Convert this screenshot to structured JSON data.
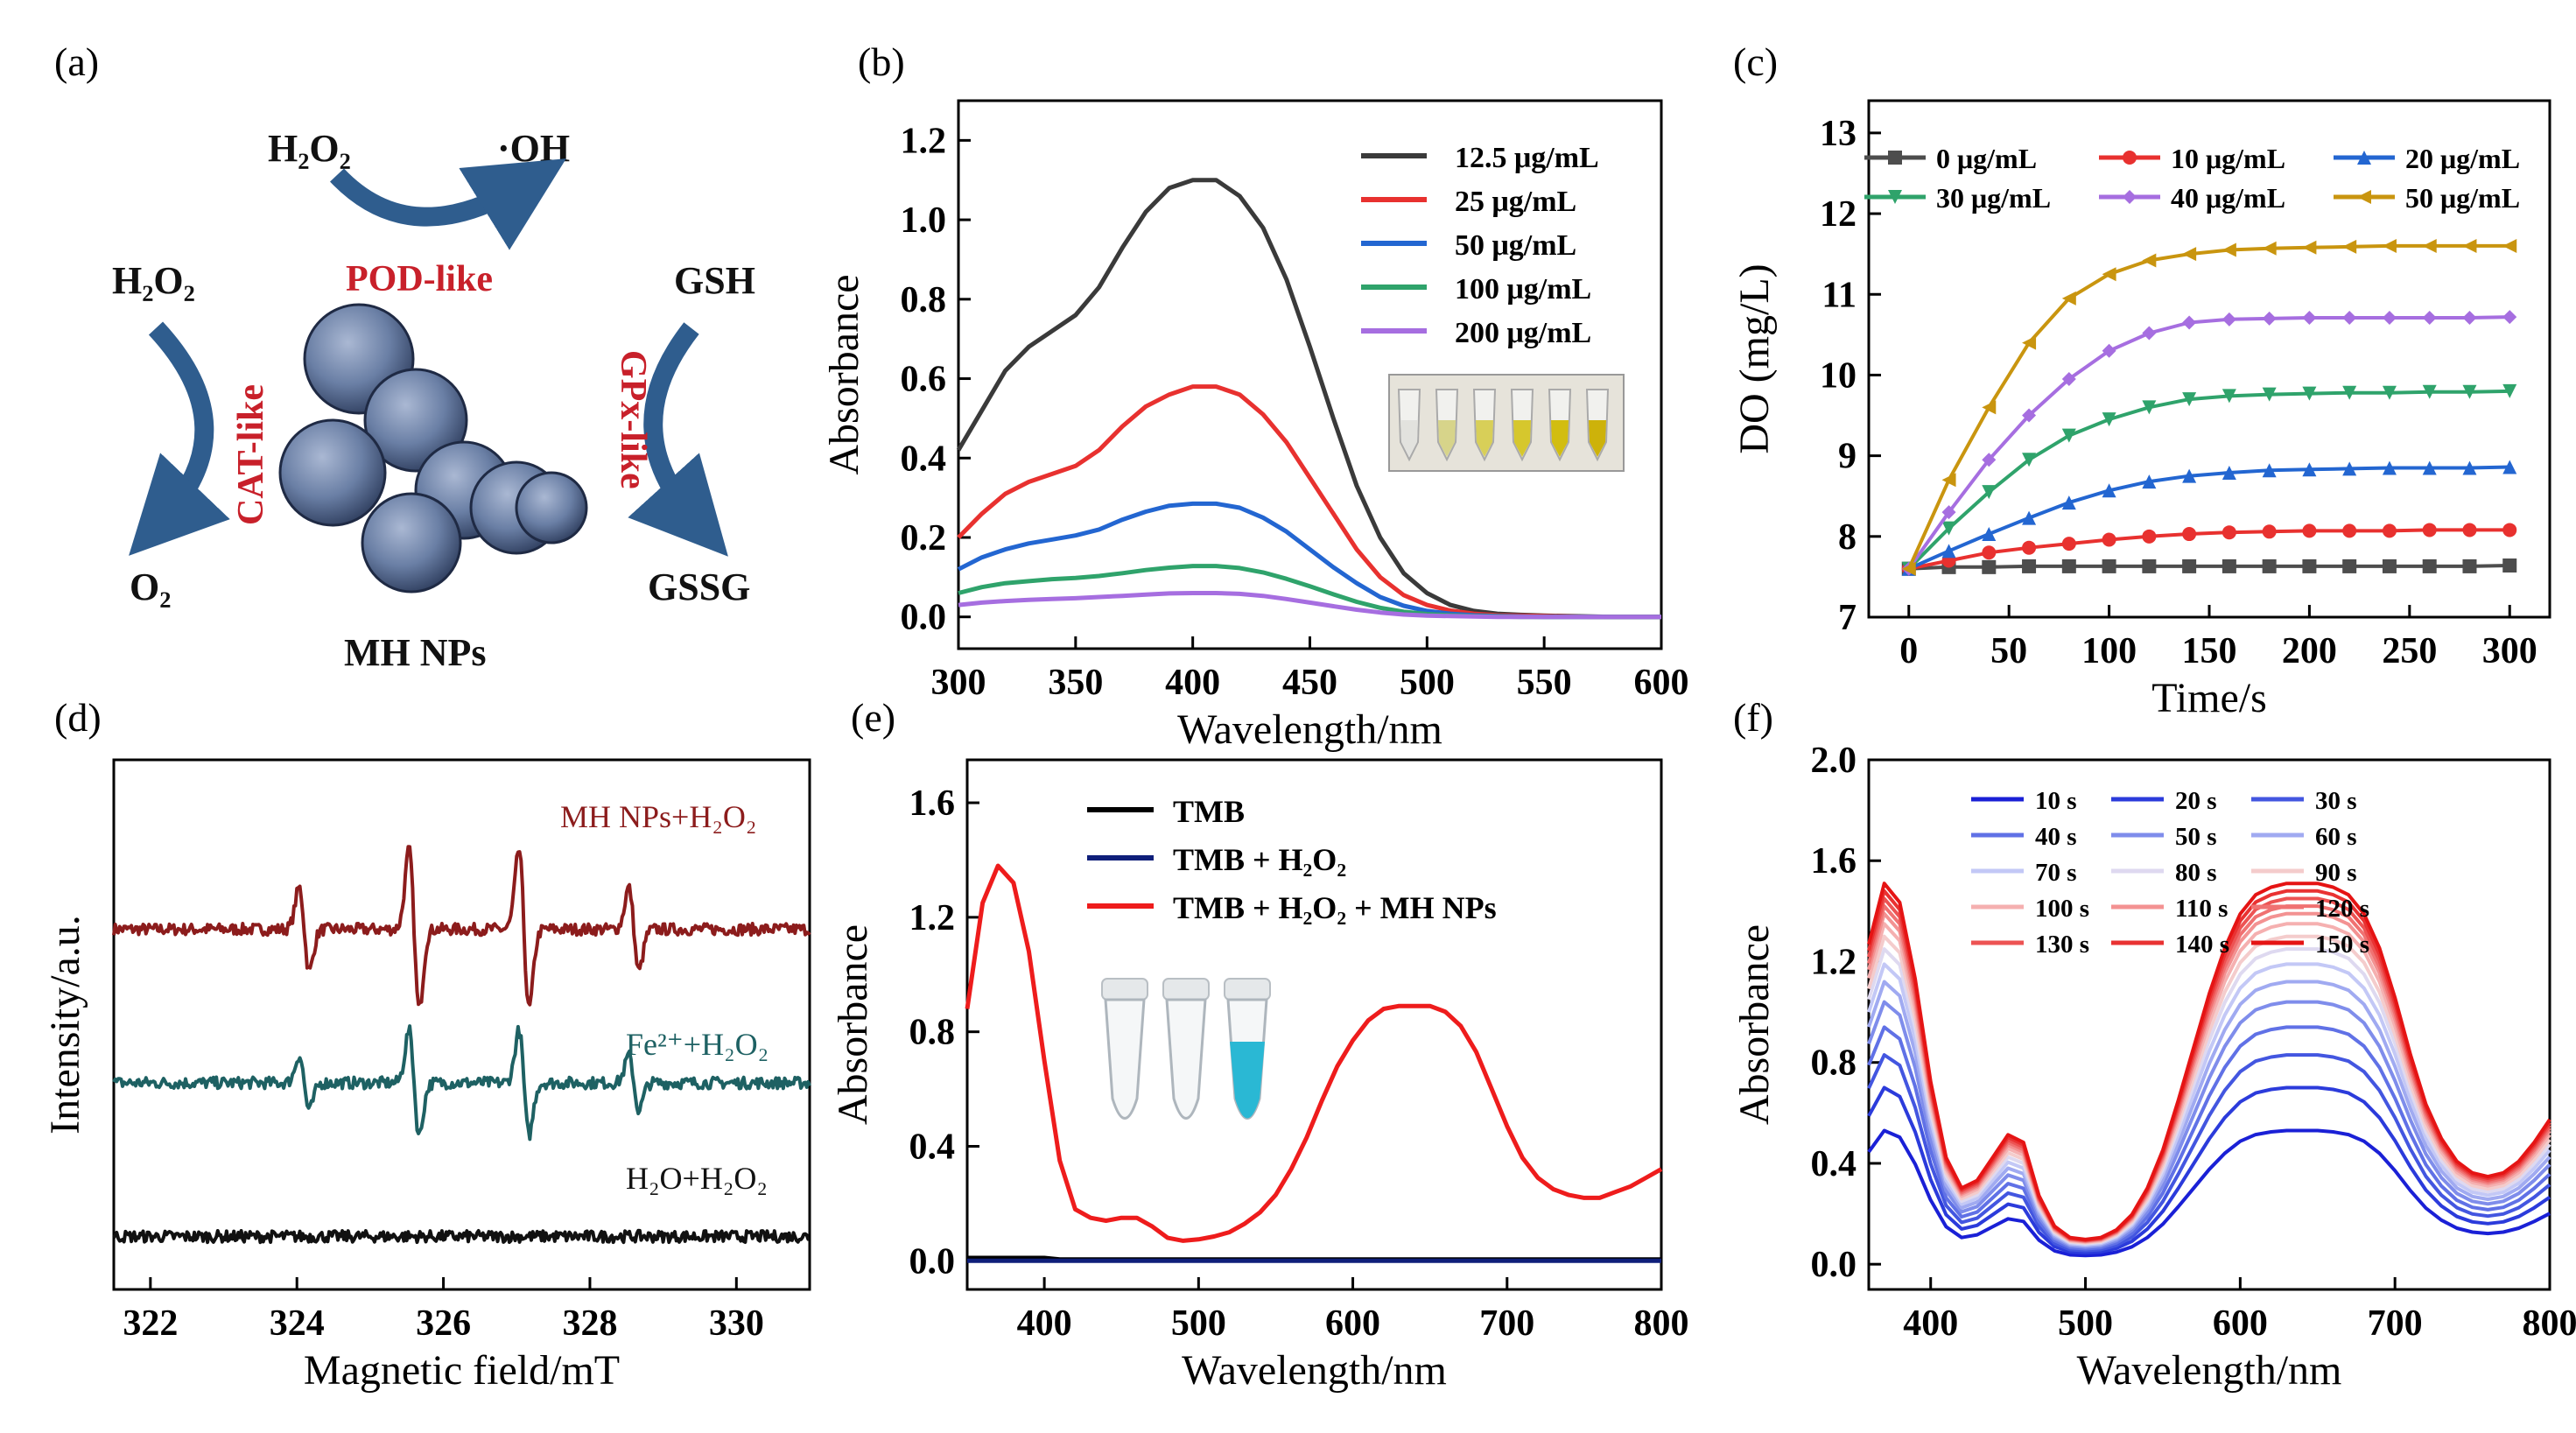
{
  "panel_a": {
    "label": "(a)",
    "top_left": "H₂O₂",
    "top_right": "·OH",
    "pod_label": "POD-like",
    "cat_top": "H₂O₂",
    "cat_bottom": "O₂",
    "cat_label": "CAT-like",
    "gpx_top": "GSH",
    "gpx_bottom": "GSSG",
    "gpx_label": "GPx-like",
    "particle_label": "MH NPs",
    "colors": {
      "arrow": "#2f5d8e",
      "label": "#c8202a",
      "particle": "#6a7fa5"
    }
  },
  "chart_data": [
    {
      "id": "b",
      "panel_label": "(b)",
      "type": "line",
      "xlabel": "Wavelength/nm",
      "ylabel": "Absorbance",
      "xlim": [
        300,
        600
      ],
      "ylim": [
        -0.08,
        1.3
      ],
      "xticks": [
        300,
        350,
        400,
        450,
        500,
        550,
        600
      ],
      "yticks": [
        0.0,
        0.2,
        0.4,
        0.6,
        0.8,
        1.0,
        1.2
      ],
      "ytick_decimals": 1,
      "legend": "top-right",
      "x": [
        300,
        310,
        320,
        330,
        340,
        350,
        360,
        370,
        380,
        390,
        400,
        410,
        420,
        430,
        440,
        450,
        460,
        470,
        480,
        490,
        500,
        510,
        520,
        530,
        540,
        550,
        560,
        570,
        580,
        590,
        600
      ],
      "series": [
        {
          "name": "12.5 μg/mL",
          "color": "#3a3a3a",
          "values": [
            0.42,
            0.52,
            0.62,
            0.68,
            0.72,
            0.76,
            0.83,
            0.93,
            1.02,
            1.08,
            1.1,
            1.1,
            1.06,
            0.98,
            0.85,
            0.68,
            0.5,
            0.33,
            0.2,
            0.11,
            0.06,
            0.03,
            0.015,
            0.008,
            0.005,
            0.003,
            0.002,
            0.001,
            0.0,
            0.0,
            0.0
          ]
        },
        {
          "name": "25 μg/mL",
          "color": "#e8312f",
          "values": [
            0.2,
            0.26,
            0.31,
            0.34,
            0.36,
            0.38,
            0.42,
            0.48,
            0.53,
            0.56,
            0.58,
            0.58,
            0.56,
            0.51,
            0.44,
            0.35,
            0.26,
            0.17,
            0.1,
            0.055,
            0.03,
            0.016,
            0.008,
            0.004,
            0.003,
            0.002,
            0.001,
            0.0,
            0.0,
            0.0,
            0.0
          ]
        },
        {
          "name": "50 μg/mL",
          "color": "#2366d1",
          "values": [
            0.12,
            0.15,
            0.17,
            0.185,
            0.195,
            0.205,
            0.22,
            0.245,
            0.265,
            0.28,
            0.285,
            0.285,
            0.275,
            0.25,
            0.215,
            0.17,
            0.125,
            0.085,
            0.05,
            0.028,
            0.015,
            0.008,
            0.004,
            0.002,
            0.001,
            0.0,
            0.0,
            0.0,
            0.0,
            0.0,
            0.0
          ]
        },
        {
          "name": "100 μg/mL",
          "color": "#2fa36b",
          "values": [
            0.06,
            0.075,
            0.085,
            0.09,
            0.095,
            0.098,
            0.103,
            0.11,
            0.118,
            0.124,
            0.128,
            0.128,
            0.123,
            0.112,
            0.096,
            0.077,
            0.057,
            0.038,
            0.023,
            0.013,
            0.007,
            0.004,
            0.002,
            0.001,
            0.0,
            0.0,
            0.0,
            0.0,
            0.0,
            0.0,
            0.0
          ]
        },
        {
          "name": "200 μg/mL",
          "color": "#a66ee0",
          "values": [
            0.03,
            0.036,
            0.04,
            0.043,
            0.045,
            0.047,
            0.05,
            0.053,
            0.056,
            0.059,
            0.06,
            0.06,
            0.058,
            0.053,
            0.045,
            0.036,
            0.027,
            0.018,
            0.011,
            0.006,
            0.003,
            0.002,
            0.001,
            0.0,
            0.0,
            0.0,
            0.0,
            0.0,
            0.0,
            0.0,
            0.0
          ]
        }
      ]
    },
    {
      "id": "c",
      "panel_label": "(c)",
      "type": "line",
      "xlabel": "Time/s",
      "ylabel": "DO (mg/L)",
      "xlim": [
        -20,
        320
      ],
      "ylim": [
        7,
        13.4
      ],
      "xticks": [
        0,
        50,
        100,
        150,
        200,
        250,
        300
      ],
      "yticks": [
        7,
        8,
        9,
        10,
        11,
        12,
        13
      ],
      "ytick_decimals": 0,
      "legend": "top",
      "markers": true,
      "x": [
        0,
        20,
        40,
        60,
        80,
        100,
        120,
        140,
        160,
        180,
        200,
        220,
        240,
        260,
        280,
        300
      ],
      "series": [
        {
          "name": "0 μg/mL",
          "color": "#4d4d4d",
          "marker": "square",
          "values": [
            7.6,
            7.62,
            7.62,
            7.63,
            7.63,
            7.63,
            7.63,
            7.63,
            7.63,
            7.63,
            7.63,
            7.63,
            7.63,
            7.63,
            7.63,
            7.64
          ]
        },
        {
          "name": "10 μg/mL",
          "color": "#e8312f",
          "marker": "circle",
          "values": [
            7.6,
            7.7,
            7.8,
            7.86,
            7.91,
            7.96,
            8.0,
            8.03,
            8.05,
            8.06,
            8.07,
            8.07,
            8.07,
            8.08,
            8.08,
            8.08
          ]
        },
        {
          "name": "20 μg/mL",
          "color": "#2366d1",
          "marker": "triangle-up",
          "values": [
            7.6,
            7.82,
            8.03,
            8.23,
            8.42,
            8.57,
            8.68,
            8.75,
            8.79,
            8.82,
            8.83,
            8.84,
            8.85,
            8.85,
            8.85,
            8.86
          ]
        },
        {
          "name": "30 μg/mL",
          "color": "#2fa36b",
          "marker": "triangle-down",
          "values": [
            7.6,
            8.1,
            8.55,
            8.95,
            9.25,
            9.45,
            9.6,
            9.7,
            9.74,
            9.76,
            9.77,
            9.78,
            9.78,
            9.79,
            9.79,
            9.8
          ]
        },
        {
          "name": "40 μg/mL",
          "color": "#a66ee0",
          "marker": "diamond",
          "values": [
            7.6,
            8.3,
            8.95,
            9.5,
            9.95,
            10.3,
            10.52,
            10.65,
            10.69,
            10.7,
            10.71,
            10.71,
            10.71,
            10.71,
            10.71,
            10.72
          ]
        },
        {
          "name": "50 μg/mL",
          "color": "#c9950f",
          "marker": "triangle-left",
          "values": [
            7.6,
            8.7,
            9.6,
            10.4,
            10.95,
            11.25,
            11.42,
            11.5,
            11.55,
            11.57,
            11.58,
            11.59,
            11.6,
            11.6,
            11.6,
            11.6
          ]
        }
      ]
    },
    {
      "id": "d",
      "panel_label": "(d)",
      "type": "line",
      "xlabel": "Magnetic field/mT",
      "ylabel": "Intensity/a.u.",
      "xlim": [
        321.5,
        331
      ],
      "ylim": [
        0,
        10
      ],
      "xticks": [
        322,
        324,
        326,
        328,
        330
      ],
      "yticks": [],
      "ytick_decimals": 0,
      "esr": true,
      "peaks": [
        324.1,
        325.6,
        327.1,
        328.6
      ],
      "series": [
        {
          "name": "MH NPs+H₂O₂",
          "color": "#8c1c1c",
          "baseline": 6.8,
          "amplitudes": [
            1.0,
            1.9,
            1.9,
            1.0
          ]
        },
        {
          "name": "Fe²⁺+H₂O₂",
          "color": "#1e6163",
          "baseline": 3.9,
          "amplitudes": [
            0.65,
            1.25,
            1.25,
            0.65
          ]
        },
        {
          "name": "H₂O+H₂O₂",
          "color": "#111111",
          "baseline": 1.0,
          "amplitudes": [
            0,
            0,
            0,
            0
          ]
        }
      ]
    },
    {
      "id": "e",
      "panel_label": "(e)",
      "type": "line",
      "xlabel": "Wavelength/nm",
      "ylabel": "Absorbance",
      "xlim": [
        350,
        800
      ],
      "ylim": [
        -0.1,
        1.75
      ],
      "xticks": [
        400,
        500,
        600,
        700,
        800
      ],
      "yticks": [
        0.0,
        0.4,
        0.8,
        1.2,
        1.6
      ],
      "ytick_decimals": 1,
      "legend": "top-center",
      "x": [
        350,
        360,
        370,
        380,
        390,
        400,
        410,
        420,
        430,
        440,
        450,
        460,
        470,
        480,
        490,
        500,
        510,
        520,
        530,
        540,
        550,
        560,
        570,
        580,
        590,
        600,
        610,
        620,
        630,
        640,
        650,
        660,
        670,
        680,
        690,
        700,
        710,
        720,
        730,
        740,
        750,
        760,
        770,
        780,
        790,
        800
      ],
      "series": [
        {
          "name": "TMB",
          "color": "#000000",
          "values": [
            0.01,
            0.01,
            0.01,
            0.01,
            0.01,
            0.01,
            0.005,
            0.005,
            0.005,
            0.005,
            0.005,
            0.005,
            0.005,
            0.005,
            0.005,
            0.005,
            0.005,
            0.005,
            0.005,
            0.005,
            0.005,
            0.005,
            0.005,
            0.005,
            0.005,
            0.005,
            0.005,
            0.005,
            0.005,
            0.005,
            0.005,
            0.005,
            0.005,
            0.005,
            0.005,
            0.005,
            0.005,
            0.005,
            0.005,
            0.005,
            0.005,
            0.005,
            0.005,
            0.005,
            0.005,
            0.005
          ]
        },
        {
          "name": "TMB + H₂O₂",
          "color": "#0f1f7a",
          "values": [
            0.0,
            0.0,
            0.0,
            0.0,
            0.0,
            0.0,
            0.0,
            0.0,
            0.0,
            0.0,
            0.0,
            0.0,
            0.0,
            0.0,
            0.0,
            0.0,
            0.0,
            0.0,
            0.0,
            0.0,
            0.0,
            0.0,
            0.0,
            0.0,
            0.0,
            0.0,
            0.0,
            0.0,
            0.0,
            0.0,
            0.0,
            0.0,
            0.0,
            0.0,
            0.0,
            0.0,
            0.0,
            0.0,
            0.0,
            0.0,
            0.0,
            0.0,
            0.0,
            0.0,
            0.0,
            0.0
          ]
        },
        {
          "name": "TMB + H₂O₂ + MH NPs",
          "color": "#ee1c1c",
          "values": [
            0.88,
            1.25,
            1.38,
            1.32,
            1.08,
            0.7,
            0.35,
            0.18,
            0.15,
            0.14,
            0.15,
            0.15,
            0.12,
            0.08,
            0.07,
            0.075,
            0.085,
            0.1,
            0.13,
            0.17,
            0.23,
            0.32,
            0.43,
            0.56,
            0.68,
            0.77,
            0.84,
            0.88,
            0.89,
            0.89,
            0.89,
            0.87,
            0.82,
            0.73,
            0.6,
            0.47,
            0.36,
            0.29,
            0.25,
            0.23,
            0.22,
            0.22,
            0.24,
            0.26,
            0.29,
            0.32
          ]
        }
      ]
    },
    {
      "id": "f",
      "panel_label": "(f)",
      "type": "line",
      "xlabel": "Wavelength/nm",
      "ylabel": "Absorbance",
      "xlim": [
        360,
        800
      ],
      "ylim": [
        -0.1,
        2.0
      ],
      "xticks": [
        400,
        500,
        600,
        700,
        800
      ],
      "yticks": [
        0.0,
        0.4,
        0.8,
        1.2,
        1.6,
        2.0
      ],
      "ytick_decimals": 1,
      "legend": "top-center",
      "kinetic": true,
      "x": [
        360,
        370,
        380,
        390,
        400,
        410,
        420,
        430,
        440,
        450,
        460,
        470,
        480,
        490,
        500,
        510,
        520,
        530,
        540,
        550,
        560,
        570,
        580,
        590,
        600,
        610,
        620,
        630,
        640,
        650,
        660,
        670,
        680,
        690,
        700,
        710,
        720,
        730,
        740,
        750,
        760,
        770,
        780,
        790,
        800
      ],
      "shape_values": [
        0.84,
        1.0,
        0.95,
        0.75,
        0.48,
        0.28,
        0.2,
        0.22,
        0.28,
        0.34,
        0.32,
        0.18,
        0.1,
        0.07,
        0.065,
        0.07,
        0.09,
        0.13,
        0.2,
        0.3,
        0.43,
        0.57,
        0.71,
        0.83,
        0.92,
        0.97,
        0.99,
        1.0,
        1.0,
        1.0,
        0.99,
        0.97,
        0.92,
        0.83,
        0.7,
        0.55,
        0.42,
        0.33,
        0.27,
        0.24,
        0.23,
        0.24,
        0.27,
        0.32,
        0.38
      ],
      "series": [
        {
          "name": "10 s",
          "color": "#1a20d6",
          "scale": 0.53
        },
        {
          "name": "20 s",
          "color": "#2b3bdb",
          "scale": 0.7
        },
        {
          "name": "30 s",
          "color": "#4356e0",
          "scale": 0.83
        },
        {
          "name": "40 s",
          "color": "#6071e6",
          "scale": 0.94
        },
        {
          "name": "50 s",
          "color": "#7f8deb",
          "scale": 1.04
        },
        {
          "name": "60 s",
          "color": "#a0aaf1",
          "scale": 1.12
        },
        {
          "name": "70 s",
          "color": "#c3c8f6",
          "scale": 1.19
        },
        {
          "name": "80 s",
          "color": "#ded9f0",
          "scale": 1.25
        },
        {
          "name": "90 s",
          "color": "#f4cccc",
          "scale": 1.3
        },
        {
          "name": "100 s",
          "color": "#f5b0b0",
          "scale": 1.35
        },
        {
          "name": "110 s",
          "color": "#f39292",
          "scale": 1.39
        },
        {
          "name": "120 s",
          "color": "#f07272",
          "scale": 1.42
        },
        {
          "name": "130 s",
          "color": "#ed5353",
          "scale": 1.45
        },
        {
          "name": "140 s",
          "color": "#e93232",
          "scale": 1.48
        },
        {
          "name": "150 s",
          "color": "#e51414",
          "scale": 1.51
        }
      ]
    }
  ]
}
